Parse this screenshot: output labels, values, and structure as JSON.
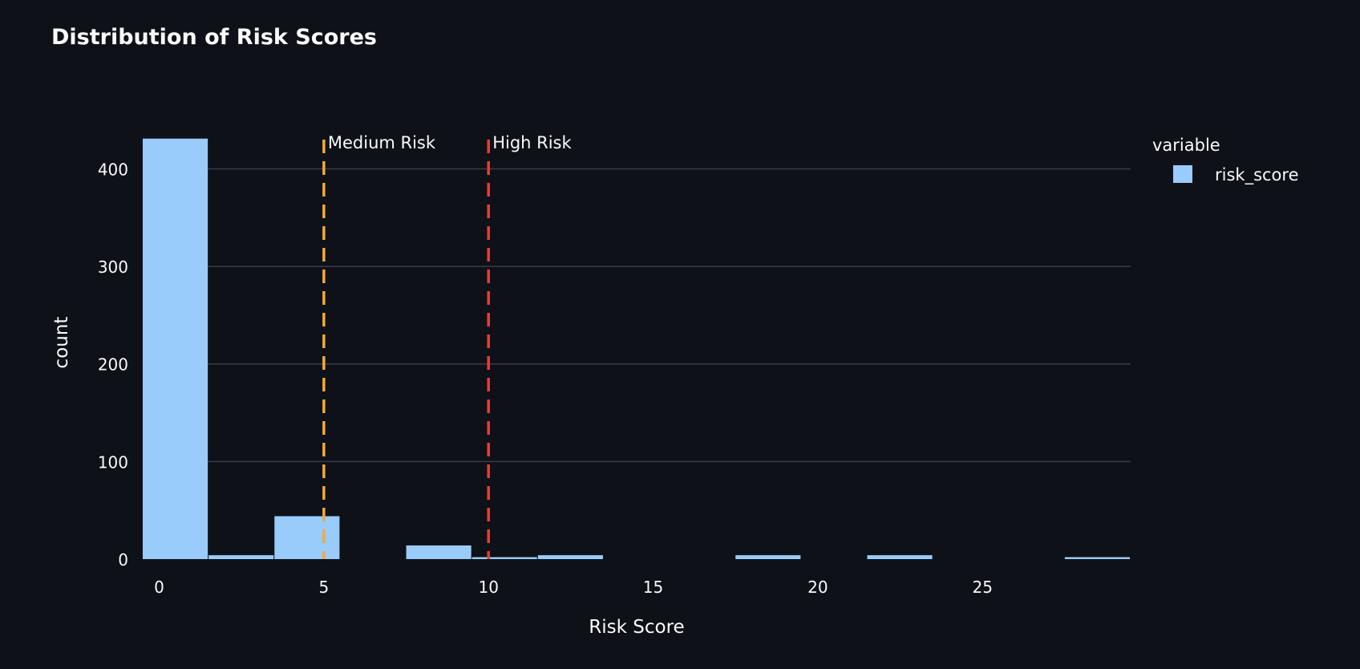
{
  "chart_data": {
    "type": "bar",
    "title": "Distribution of Risk Scores",
    "xlabel": "Risk Score",
    "ylabel": "count",
    "xlim": [
      -0.5,
      29.5
    ],
    "ylim": [
      0,
      430
    ],
    "x_ticks": [
      0,
      5,
      10,
      15,
      20,
      25
    ],
    "y_ticks": [
      0,
      100,
      200,
      300,
      400
    ],
    "grid": true,
    "bin_width": 2,
    "bins": [
      {
        "x0": -0.5,
        "x1": 1.5,
        "count": 431
      },
      {
        "x0": 1.5,
        "x1": 3.5,
        "count": 4
      },
      {
        "x0": 3.5,
        "x1": 5.5,
        "count": 44
      },
      {
        "x0": 5.5,
        "x1": 7.5,
        "count": 0
      },
      {
        "x0": 7.5,
        "x1": 9.5,
        "count": 14
      },
      {
        "x0": 9.5,
        "x1": 11.5,
        "count": 2
      },
      {
        "x0": 11.5,
        "x1": 13.5,
        "count": 4
      },
      {
        "x0": 13.5,
        "x1": 15.5,
        "count": 0
      },
      {
        "x0": 15.5,
        "x1": 17.5,
        "count": 0
      },
      {
        "x0": 17.5,
        "x1": 19.5,
        "count": 4
      },
      {
        "x0": 19.5,
        "x1": 21.5,
        "count": 0
      },
      {
        "x0": 21.5,
        "x1": 23.5,
        "count": 4
      },
      {
        "x0": 23.5,
        "x1": 25.5,
        "count": 0
      },
      {
        "x0": 25.5,
        "x1": 27.5,
        "count": 0
      },
      {
        "x0": 27.5,
        "x1": 29.5,
        "count": 2
      }
    ],
    "thresholds": [
      {
        "x": 5,
        "label": "Medium Risk",
        "color": "#f5a83a"
      },
      {
        "x": 10,
        "label": "High Risk",
        "color": "#e0413a"
      }
    ],
    "legend": {
      "title": "variable",
      "placement": "top-right",
      "entries": [
        {
          "name": "risk_score",
          "color": "#99ccfa"
        }
      ]
    },
    "colors": {
      "background": "#0e1117",
      "bar": "#99ccfa",
      "grid": "#3a3d45",
      "text": "#fafafa"
    }
  }
}
